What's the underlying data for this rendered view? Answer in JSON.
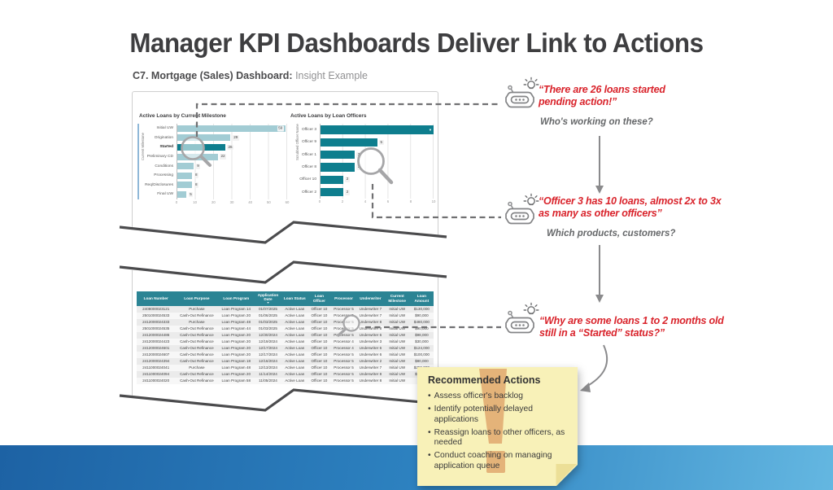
{
  "title": "Manager KPI Dashboards Deliver Link to Actions",
  "subtitle": {
    "label_bold": "C7. Mortgage (Sales) Dashboard:",
    "label_light": "Insight Example"
  },
  "colors": {
    "accent_red": "#d9232b",
    "teal_dark": "#0e7e8e",
    "teal_light": "#a2ccd4",
    "table_header": "#2b8494",
    "band_left": "#1d62a4",
    "band_right": "#64b7e1",
    "note_bg": "#f8f1b8",
    "note_fold": "#ecdf97",
    "watermark": "#dfa469"
  },
  "chart_data": [
    {
      "type": "bar",
      "orientation": "horizontal",
      "title": "Active Loans by Current Milestone",
      "ylabel": "Current Milestone",
      "xlabel": "",
      "xlim": [
        0,
        60
      ],
      "xticks": [
        0,
        10,
        20,
        30,
        40,
        50,
        60
      ],
      "grid": true,
      "categories": [
        "Initial UW",
        "Origination",
        "Started",
        "Preliminary CD",
        "Conditions",
        "Processing",
        "Req/Disclosures",
        "Final UW"
      ],
      "values": [
        59,
        29,
        26,
        22,
        9,
        8,
        8,
        5
      ],
      "highlight_category": "Started",
      "bar_color": "#a2ccd4",
      "highlight_color": "#0e7e8e"
    },
    {
      "type": "bar",
      "orientation": "horizontal",
      "title": "Active Loans by Loan Officers",
      "ylabel": "Scrubbed Officer Name",
      "xlabel": "",
      "xlim": [
        0,
        10
      ],
      "xticks": [
        0,
        2,
        4,
        6,
        8,
        10
      ],
      "grid": true,
      "categories": [
        "Officer 3",
        "Officer 9",
        "Officer 1",
        "Officer 8",
        "Officer 10",
        "Officer 2"
      ],
      "values": [
        10,
        5,
        3,
        3,
        2,
        2
      ],
      "highlight_category": null,
      "bar_color": "#0e7e8e",
      "highlight_color": "#0e7e8e"
    }
  ],
  "table": {
    "sorted_by": "Application Date",
    "headers": [
      "Loan Number",
      "Loan Purpose",
      "Loan Program",
      "Application Date",
      "Loan Status",
      "Loan Officer",
      "Processor",
      "Underwriter",
      "Current Milestone",
      "Loan Amount"
    ],
    "rows": [
      [
        "2408000023121",
        "Purchase",
        "Loan Program 14",
        "01/07/2025",
        "Active Loan",
        "Officer 10",
        "Processor 5",
        "Underwriter 7",
        "Initial UW",
        "$130,000"
      ],
      [
        "2501000024533",
        "Cash-Out Refinance",
        "Loan Program 20",
        "01/06/2025",
        "Active Loan",
        "Officer 10",
        "Processor 5",
        "Underwriter 7",
        "Initial UW",
        "$90,000"
      ],
      [
        "2412000024333",
        "Purchase",
        "Loan Program 48",
        "01/03/2025",
        "Active Loan",
        "Officer 10",
        "Processor 5",
        "Underwriter 8",
        "Initial UW",
        "$480,000"
      ],
      [
        "2501000024535",
        "Cash-Out Refinance",
        "Loan Program 44",
        "01/03/2025",
        "Active Loan",
        "Officer 10",
        "Processor 5",
        "Underwriter 8",
        "Initial UW",
        "$90,000"
      ],
      [
        "2412000024486",
        "Cash-Out Refinance",
        "Loan Program 20",
        "12/30/2024",
        "Active Loan",
        "Officer 10",
        "Processor 5",
        "Underwriter 6",
        "Initial UW",
        "$98,000"
      ],
      [
        "2412000024423",
        "Cash-Out Refinance",
        "Loan Program 20",
        "12/19/2024",
        "Active Loan",
        "Officer 10",
        "Processor 4",
        "Underwriter 3",
        "Initial UW",
        "$30,000"
      ],
      [
        "2412000024601",
        "Cash-Out Refinance",
        "Loan Program 20",
        "12/17/2024",
        "Active Loan",
        "Officer 10",
        "Processor 4",
        "Underwriter 6",
        "Initial UW",
        "$124,000"
      ],
      [
        "2412000024607",
        "Cash-Out Refinance",
        "Loan Program 20",
        "12/17/2024",
        "Active Loan",
        "Officer 10",
        "Processor 5",
        "Underwriter 6",
        "Initial UW",
        "$100,000"
      ],
      [
        "2412000024394",
        "Cash-Out Refinance",
        "Loan Program 18",
        "12/16/2024",
        "Active Loan",
        "Officer 10",
        "Processor 5",
        "Underwriter 2",
        "Initial UW",
        "$80,000"
      ],
      [
        "2411000024041",
        "Purchase",
        "Loan Program 48",
        "12/13/2024",
        "Active Loan",
        "Officer 10",
        "Processor 5",
        "Underwriter 7",
        "Initial UW",
        "$355,000"
      ],
      [
        "2411000024094",
        "Cash-Out Refinance",
        "Loan Program 20",
        "11/14/2024",
        "Active Loan",
        "Officer 10",
        "Processor 5",
        "Underwriter 8",
        "Initial UW",
        "$75,000"
      ],
      [
        "2411000024020",
        "Cash-Out Refinance",
        "Loan Program 58",
        "11/05/2024",
        "Active Loan",
        "Officer 10",
        "Processor 5",
        "Underwriter 8",
        "Initial UW",
        "$2"
      ]
    ]
  },
  "callouts": [
    {
      "quote": "“There are 26 loans started pending action!”",
      "question": "Who's working on these?"
    },
    {
      "quote": "“Officer 3 has 10 loans, almost 2x to 3x as many as other officers”",
      "question": "Which products, customers?"
    },
    {
      "quote": "“Why are some loans 1 to 2 months old still in a “Started” status?”",
      "question": ""
    }
  ],
  "sticky_note": {
    "title": "Recommended Actions",
    "bullets": [
      "Assess officer's backlog",
      "Identify potentially delayed applications",
      "Reassign loans to other officers, as needed",
      "Conduct coaching on managing application queue"
    ]
  }
}
